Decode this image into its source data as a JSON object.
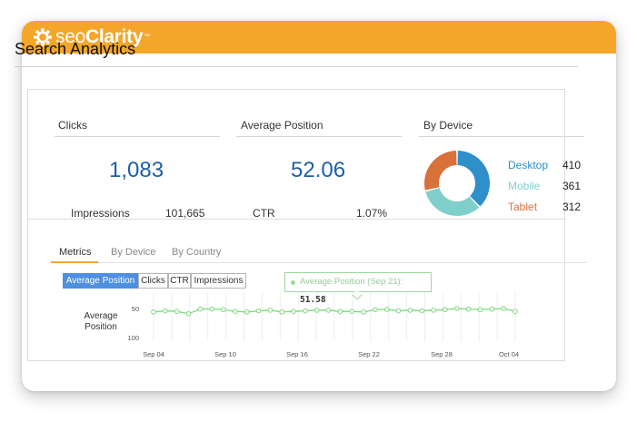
{
  "brand": {
    "name_light": "seo",
    "name_bold": "Clarity",
    "trademark": "™"
  },
  "page": {
    "title": "Search Analytics"
  },
  "summary": {
    "clicks": {
      "label": "Clicks",
      "value": "1,083",
      "sub_label": "Impressions",
      "sub_value": "101,665"
    },
    "position": {
      "label": "Average Position",
      "value": "52.06",
      "sub_label": "CTR",
      "sub_value": "1.07%"
    },
    "device": {
      "label": "By Device",
      "items": [
        {
          "name": "Desktop",
          "value": "410",
          "color": "#2e8fc9"
        },
        {
          "name": "Mobile",
          "value": "361",
          "color": "#7fcfcb"
        },
        {
          "name": "Tablet",
          "value": "312",
          "color": "#d9713b"
        }
      ]
    }
  },
  "tabs": [
    {
      "label": "Metrics",
      "active": true
    },
    {
      "label": "By Device",
      "active": false
    },
    {
      "label": "By Country",
      "active": false
    }
  ],
  "metric_buttons": [
    {
      "label": "Average Position",
      "active": true
    },
    {
      "label": "Clicks",
      "active": false
    },
    {
      "label": "CTR",
      "active": false
    },
    {
      "label": "Impressions",
      "active": false
    }
  ],
  "tooltip": {
    "label": "Average Position (Sep 21):",
    "value": "51.58"
  },
  "chart_data": {
    "type": "line",
    "ylabel": "Average\nPosition",
    "y_ticks": [
      "50",
      "100"
    ],
    "ylim": [
      100,
      30
    ],
    "y_inverted": true,
    "x_ticks": [
      "Sep 04",
      "Sep 10",
      "Sep 16",
      "Sep 22",
      "Sep 28",
      "Oct 04"
    ],
    "series": [
      {
        "color": "#7fd77f",
        "values": [
          56,
          54,
          55,
          59,
          51,
          51,
          52,
          55,
          56,
          54,
          53,
          56,
          55,
          54,
          53,
          53,
          55,
          55,
          56,
          52,
          51.58,
          54,
          53,
          54,
          53,
          52,
          50,
          51,
          52,
          51,
          50,
          55
        ]
      }
    ]
  }
}
